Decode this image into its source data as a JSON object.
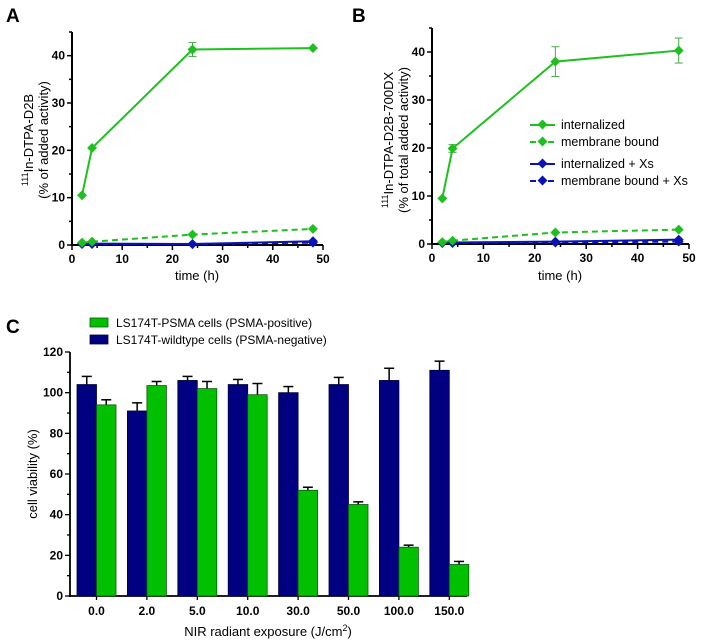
{
  "figure": {
    "panel_labels": [
      "A",
      "B",
      "C"
    ]
  },
  "chart_data": [
    {
      "id": "A",
      "type": "line",
      "title": "",
      "xlabel": "time (h)",
      "ylabel_sup": "111",
      "ylabel_line1": "In-DTPA-D2B",
      "ylabel_line2": "(% of added activity)",
      "xlim": [
        0,
        50
      ],
      "ylim": [
        0,
        45
      ],
      "xticks": [
        0,
        10,
        20,
        30,
        40,
        50
      ],
      "yticks": [
        0,
        10,
        20,
        30,
        40
      ],
      "x": [
        2,
        4,
        24,
        48
      ],
      "series": [
        {
          "name": "internalized",
          "color": "#1ec01e",
          "dash": false,
          "values": [
            10.5,
            20.5,
            41.3,
            41.6
          ],
          "errors": [
            0.3,
            0.4,
            1.5,
            0.4
          ]
        },
        {
          "name": "membrane bound",
          "color": "#1ec01e",
          "dash": true,
          "values": [
            0.5,
            0.7,
            2.2,
            3.4
          ],
          "errors": [
            0,
            0,
            0,
            0
          ]
        },
        {
          "name": "internalized + Xs",
          "color": "#0a14b4",
          "dash": false,
          "values": [
            0.3,
            0.3,
            0.2,
            0.8
          ],
          "errors": [
            0,
            0,
            0,
            0
          ]
        },
        {
          "name": "membrane bound + Xs",
          "color": "#0a14b4",
          "dash": true,
          "values": [
            0.2,
            0.2,
            0.2,
            0.5
          ],
          "errors": [
            0,
            0,
            0,
            0
          ]
        }
      ],
      "legend": "none"
    },
    {
      "id": "B",
      "type": "line",
      "title": "",
      "xlabel": "time (h)",
      "ylabel_sup": "111",
      "ylabel_line1": "In-DTPA-D2B-700DX",
      "ylabel_line2": "(% of total added activity)",
      "xlim": [
        0,
        50
      ],
      "ylim": [
        0,
        45
      ],
      "xticks": [
        0,
        10,
        20,
        30,
        40,
        50
      ],
      "yticks": [
        0,
        10,
        20,
        30,
        40
      ],
      "x": [
        2,
        4,
        24,
        48
      ],
      "series": [
        {
          "name": "internalized",
          "color": "#1ec01e",
          "dash": false,
          "values": [
            9.5,
            19.9,
            38.0,
            40.3
          ],
          "errors": [
            0.3,
            0.8,
            3.1,
            2.6
          ]
        },
        {
          "name": "membrane bound",
          "color": "#1ec01e",
          "dash": true,
          "values": [
            0.4,
            0.7,
            2.4,
            3.0
          ],
          "errors": [
            0,
            0,
            0,
            0
          ]
        },
        {
          "name": "internalized + Xs",
          "color": "#0a14b4",
          "dash": false,
          "values": [
            0.3,
            0.3,
            0.5,
            0.9
          ],
          "errors": [
            0,
            0,
            0,
            0
          ]
        },
        {
          "name": "membrane bound + Xs",
          "color": "#0a14b4",
          "dash": true,
          "values": [
            0.2,
            0.2,
            0.3,
            0.5
          ],
          "errors": [
            0,
            0,
            0,
            0
          ]
        }
      ],
      "legend": "center-right",
      "legend_entries": [
        "internalized",
        "membrane bound",
        "internalized + Xs",
        "membrane bound + Xs"
      ]
    },
    {
      "id": "C",
      "type": "bar",
      "title": "",
      "xlabel": "NIR radiant exposure (J/cm",
      "xlabel_sup": "2",
      "xlabel_end": ")",
      "ylabel": "cell viability  (%)",
      "ylim": [
        0,
        120
      ],
      "yticks": [
        0,
        20,
        40,
        60,
        80,
        100,
        120
      ],
      "categories": [
        "0.0",
        "2.0",
        "5.0",
        "10.0",
        "30.0",
        "50.0",
        "100.0",
        "150.0"
      ],
      "series": [
        {
          "name": "LS174T-wildtype cells (PSMA-negative)",
          "color": "#000080",
          "values": [
            104,
            91,
            106,
            104,
            100,
            104,
            106,
            111
          ],
          "errors": [
            4,
            4,
            2,
            2.5,
            3,
            3.5,
            6,
            4.5
          ]
        },
        {
          "name": "LS174T-PSMA cells (PSMA-positive)",
          "color": "#00c000",
          "values": [
            94,
            103.5,
            102,
            99,
            52,
            45,
            24,
            15.5
          ],
          "errors": [
            2.5,
            2,
            3.5,
            5.5,
            1.5,
            1.3,
            1,
            1.5
          ]
        }
      ],
      "legend": "top-left",
      "legend_entries": [
        "LS174T-PSMA cells (PSMA-positive)",
        "LS174T-wildtype cells (PSMA-negative)"
      ]
    }
  ]
}
